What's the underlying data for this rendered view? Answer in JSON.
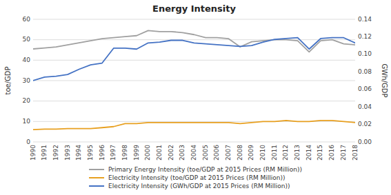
{
  "chart_data": {
    "type": "line",
    "title": "Energy Intensity",
    "x": [
      1990,
      1991,
      1992,
      1993,
      1994,
      1995,
      1996,
      1997,
      1998,
      1999,
      2000,
      2001,
      2002,
      2003,
      2004,
      2005,
      2006,
      2007,
      2008,
      2009,
      2010,
      2011,
      2012,
      2013,
      2014,
      2015,
      2016,
      2017,
      2018
    ],
    "xlim": [
      1990,
      2018
    ],
    "xticks": [
      1990,
      1991,
      1992,
      1993,
      1994,
      1995,
      1996,
      1997,
      1998,
      1999,
      2000,
      2001,
      2002,
      2003,
      2004,
      2005,
      2006,
      2007,
      2008,
      2009,
      2010,
      2011,
      2012,
      2013,
      2014,
      2015,
      2016,
      2017,
      2018
    ],
    "ylabel": "toe/GDP",
    "y2label": "GWh/GDP",
    "ylim": [
      0,
      60
    ],
    "yticks": [
      0,
      10,
      20,
      30,
      40,
      50,
      60
    ],
    "y2lim": [
      0,
      0.14
    ],
    "y2ticks": [
      {
        "value": 0,
        "label": "0.00"
      },
      {
        "value": 0.02,
        "label": "0.02"
      },
      {
        "value": 0.04,
        "label": "0.04"
      },
      {
        "value": 0.06,
        "label": "0.06"
      },
      {
        "value": 0.08,
        "label": "0.08"
      },
      {
        "value": 0.1,
        "label": "0.10"
      },
      {
        "value": 0.12,
        "label": "0.12"
      },
      {
        "value": 0.14,
        "label": "0.14"
      }
    ],
    "grid": true,
    "legend": "bottom",
    "series": [
      {
        "name": "Primary Energy Intensity (toe/GDP at 2015 Prices (RM Million))",
        "color": "#a0a0a0",
        "values": [
          45.5,
          46.0,
          46.5,
          47.5,
          48.5,
          49.5,
          50.5,
          51.0,
          51.5,
          52.0,
          54.5,
          54.0,
          54.0,
          53.5,
          52.5,
          51.0,
          51.0,
          50.5,
          46.5,
          49.0,
          49.5,
          50.0,
          50.0,
          49.5,
          44.0,
          49.5,
          50.0,
          48.0,
          47.5
        ]
      },
      {
        "name": "Electricity Intensity (toe/GDP at 2015 Prices (RM Million))",
        "color": "#e8a020",
        "values": [
          6.0,
          6.3,
          6.3,
          6.5,
          6.5,
          6.5,
          7.0,
          7.5,
          9.0,
          9.0,
          9.5,
          9.5,
          9.5,
          9.5,
          9.5,
          9.5,
          9.5,
          9.5,
          9.0,
          9.5,
          10.0,
          10.0,
          10.5,
          10.0,
          10.0,
          10.5,
          10.5,
          10.0,
          9.5
        ]
      },
      {
        "name": "Electricity Intensity (GWh/GDP at 2015 Prices (RM Million))",
        "color": "#4472c4",
        "axis": "y2",
        "values": [
          0.07,
          0.074,
          0.075,
          0.077,
          0.083,
          0.088,
          0.09,
          0.107,
          0.107,
          0.106,
          0.113,
          0.114,
          0.116,
          0.116,
          0.113,
          0.112,
          0.111,
          0.11,
          0.109,
          0.11,
          0.114,
          0.117,
          0.118,
          0.119,
          0.106,
          0.118,
          0.119,
          0.119,
          0.113
        ]
      }
    ]
  }
}
